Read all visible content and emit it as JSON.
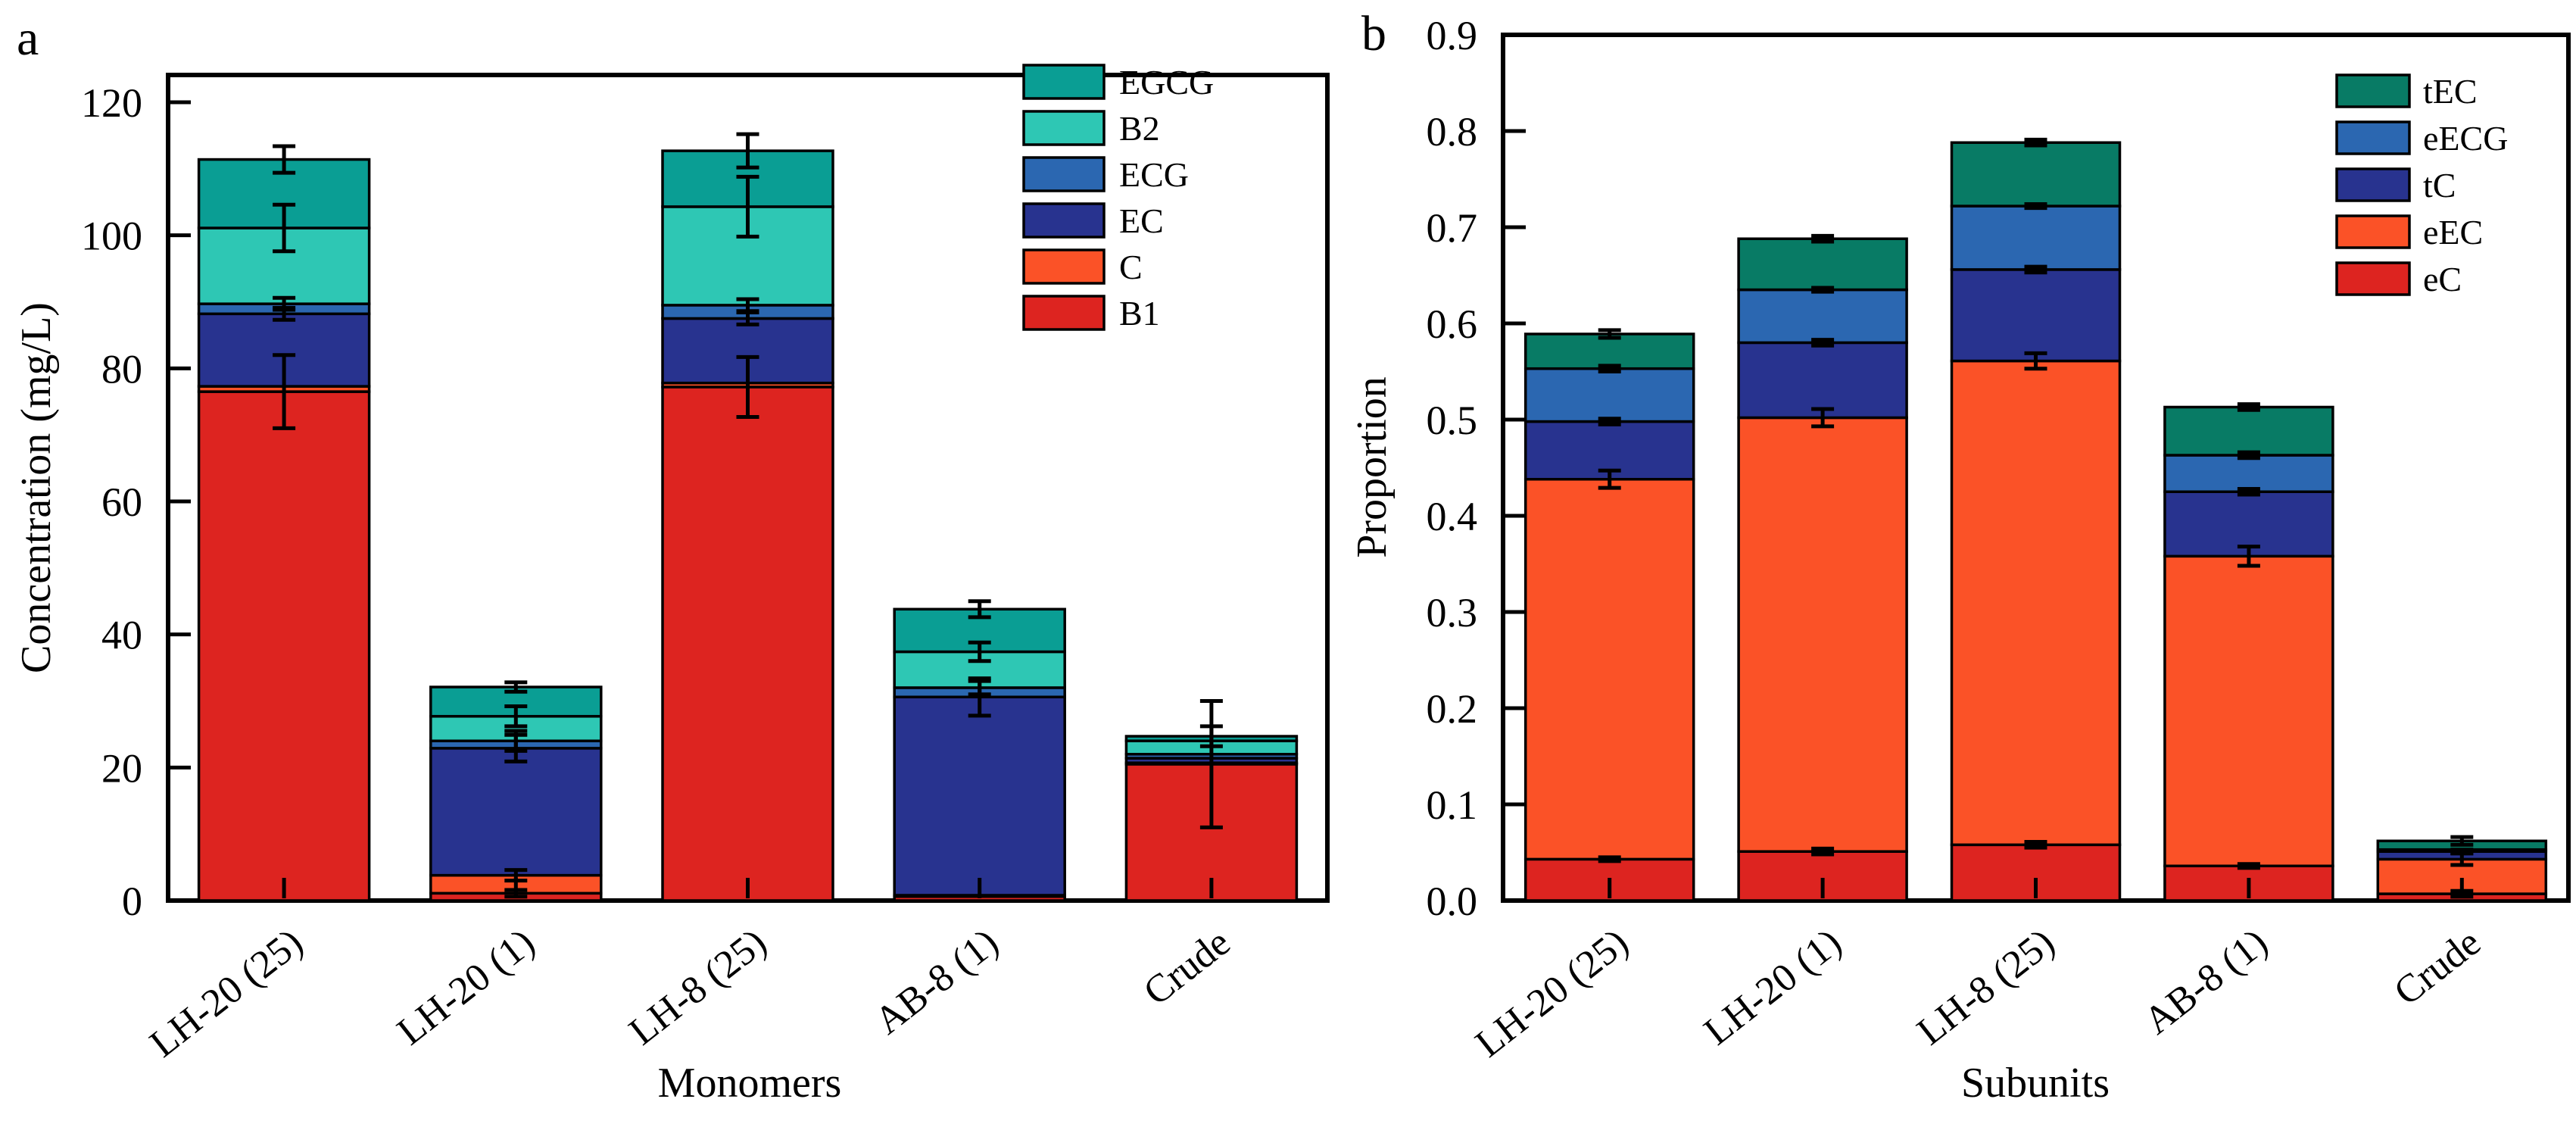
{
  "figure": {
    "background": "#ffffff",
    "axis_color": "#000000",
    "error_bar_color": "#000000"
  },
  "chart_data": [
    {
      "type": "bar",
      "stacked": true,
      "panel_label": "a",
      "xlabel": "Monomers",
      "ylabel": "Concentration (mg/L)",
      "ylim": [
        0,
        124.1
      ],
      "yticks": [
        0,
        20,
        40,
        60,
        80,
        100,
        120
      ],
      "ytick_labels": [
        "0",
        "20",
        "40",
        "60",
        "80",
        "100",
        "120"
      ],
      "categories": [
        "LH-20 (25)",
        "LH-20 (1)",
        "LH-8 (25)",
        "AB-8 (1)",
        "Crude"
      ],
      "grid": false,
      "legend_position": "top-right",
      "legend_order": [
        "EGCG",
        "B2",
        "ECG",
        "EC",
        "C",
        "B1"
      ],
      "series": [
        {
          "name": "B1",
          "color": "#dd2420",
          "values": [
            76.5,
            1.1,
            77.2,
            0.6,
            20.5
          ],
          "errors_plus_minus": [
            5.5,
            0.5,
            4.5,
            0,
            9.5
          ]
        },
        {
          "name": "C",
          "color": "#fb5227",
          "values": [
            0.8,
            2.7,
            0.6,
            0.2,
            0.2
          ],
          "errors_plus_minus": [
            0,
            0.8,
            0,
            0,
            0
          ]
        },
        {
          "name": "EC",
          "color": "#28338f",
          "values": [
            10.9,
            19.1,
            9.7,
            29.8,
            0.7
          ],
          "errors_plus_minus": [
            0.9,
            2.0,
            0.9,
            2.8,
            0
          ]
        },
        {
          "name": "ECG",
          "color": "#2b67b1",
          "values": [
            1.5,
            1.1,
            2.0,
            1.4,
            0.6
          ],
          "errors_plus_minus": [
            0.9,
            1.5,
            0.9,
            1.0,
            0
          ]
        },
        {
          "name": "B2",
          "color": "#2ec7b4",
          "values": [
            11.4,
            3.7,
            14.8,
            5.4,
            2.0
          ],
          "errors_plus_minus": [
            3.5,
            1.5,
            4.5,
            1.4,
            0
          ]
        },
        {
          "name": "EGCG",
          "color": "#0a9e94",
          "values": [
            10.3,
            4.4,
            8.4,
            6.4,
            0.7
          ],
          "errors_plus_minus": [
            2.0,
            0.7,
            2.5,
            1.2,
            1.5
          ]
        }
      ]
    },
    {
      "type": "bar",
      "stacked": true,
      "panel_label": "b",
      "xlabel": "Subunits",
      "ylabel": "Proportion",
      "ylim": [
        0,
        0.9
      ],
      "yticks": [
        0,
        0.1,
        0.2,
        0.3,
        0.4,
        0.5,
        0.6,
        0.7,
        0.8,
        0.9
      ],
      "ytick_labels": [
        "0.0",
        "0.1",
        "0.2",
        "0.3",
        "0.4",
        "0.5",
        "0.6",
        "0.7",
        "0.8",
        "0.9"
      ],
      "categories": [
        "LH-20 (25)",
        "LH-20 (1)",
        "LH-8 (25)",
        "AB-8 (1)",
        "Crude"
      ],
      "grid": false,
      "legend_position": "top-right",
      "legend_order": [
        "tEC",
        "eECG",
        "tC",
        "eEC",
        "eC"
      ],
      "series": [
        {
          "name": "eC",
          "color": "#dd2420",
          "values": [
            0.043,
            0.051,
            0.058,
            0.036,
            0.007
          ],
          "errors_plus_minus": [
            0.002,
            0.003,
            0.003,
            0.002,
            0.003
          ]
        },
        {
          "name": "eEC",
          "color": "#fb5227",
          "values": [
            0.395,
            0.451,
            0.503,
            0.322,
            0.036
          ],
          "errors_plus_minus": [
            0.009,
            0.009,
            0.008,
            0.01,
            0.006
          ]
        },
        {
          "name": "tC",
          "color": "#28338f",
          "values": [
            0.06,
            0.078,
            0.095,
            0.067,
            0.008
          ],
          "errors_plus_minus": [
            0.003,
            0.003,
            0.003,
            0.003,
            0.002
          ]
        },
        {
          "name": "eECG",
          "color": "#2b67b1",
          "values": [
            0.055,
            0.055,
            0.066,
            0.038,
            0.002
          ],
          "errors_plus_minus": [
            0.003,
            0.002,
            0.002,
            0.003,
            0
          ]
        },
        {
          "name": "tEC",
          "color": "#087b65",
          "values": [
            0.036,
            0.053,
            0.066,
            0.05,
            0.009
          ],
          "errors_plus_minus": [
            0.004,
            0.003,
            0.003,
            0.003,
            0.004
          ]
        }
      ]
    }
  ]
}
